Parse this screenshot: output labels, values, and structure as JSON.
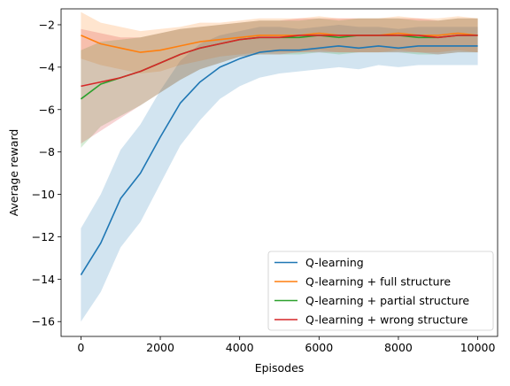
{
  "chart_data": {
    "type": "line",
    "title": "",
    "xlabel": "Episodes",
    "ylabel": "Average reward",
    "xlim": [
      -500,
      10500
    ],
    "ylim": [
      -16.7,
      -1.25
    ],
    "xticks": [
      0,
      2000,
      4000,
      6000,
      8000,
      10000
    ],
    "xtick_labels": [
      "0",
      "2000",
      "4000",
      "6000",
      "8000",
      "10000"
    ],
    "yticks": [
      -16,
      -14,
      -12,
      -10,
      -8,
      -6,
      -4,
      -2
    ],
    "ytick_labels": [
      "−16",
      "−14",
      "−12",
      "−10",
      "−8",
      "−6",
      "−4",
      "−2"
    ],
    "grid": false,
    "legend_position": "lower right",
    "x": [
      0,
      500,
      1000,
      1500,
      2000,
      2500,
      3000,
      3500,
      4000,
      4500,
      5000,
      5500,
      6000,
      6500,
      7000,
      7500,
      8000,
      8500,
      9000,
      9500,
      10000
    ],
    "series": [
      {
        "name": "Q-learning",
        "color": "#1f77b4",
        "values": [
          -13.8,
          -12.3,
          -10.2,
          -9.0,
          -7.3,
          -5.7,
          -4.7,
          -4.0,
          -3.6,
          -3.3,
          -3.2,
          -3.2,
          -3.1,
          -3.0,
          -3.1,
          -3.0,
          -3.1,
          -3.0,
          -3.0,
          -3.0,
          -3.0
        ],
        "band_width": [
          2.2,
          2.3,
          2.3,
          2.3,
          2.2,
          2.0,
          1.8,
          1.5,
          1.3,
          1.2,
          1.1,
          1.0,
          1.0,
          1.0,
          1.0,
          0.9,
          0.9,
          0.9,
          0.9,
          0.9,
          0.9
        ]
      },
      {
        "name": "Q-learning + full structure",
        "color": "#ff7f0e",
        "values": [
          -2.5,
          -2.9,
          -3.1,
          -3.3,
          -3.2,
          -3.0,
          -2.8,
          -2.7,
          -2.6,
          -2.5,
          -2.5,
          -2.5,
          -2.4,
          -2.5,
          -2.5,
          -2.5,
          -2.4,
          -2.5,
          -2.5,
          -2.4,
          -2.5
        ],
        "band_width": [
          1.1,
          1.0,
          1.0,
          1.0,
          1.0,
          0.9,
          0.9,
          0.8,
          0.8,
          0.8,
          0.8,
          0.8,
          0.8,
          0.8,
          0.8,
          0.8,
          0.8,
          0.8,
          0.8,
          0.8,
          0.8
        ]
      },
      {
        "name": "Q-learning + partial structure",
        "color": "#2ca02c",
        "values": [
          -5.5,
          -4.8,
          -4.5,
          -4.2,
          -3.8,
          -3.4,
          -3.1,
          -2.9,
          -2.7,
          -2.6,
          -2.6,
          -2.6,
          -2.5,
          -2.6,
          -2.5,
          -2.5,
          -2.5,
          -2.6,
          -2.6,
          -2.5,
          -2.5
        ],
        "band_width": [
          2.3,
          2.0,
          1.8,
          1.6,
          1.4,
          1.2,
          1.0,
          0.9,
          0.8,
          0.8,
          0.8,
          0.8,
          0.8,
          0.8,
          0.8,
          0.8,
          0.8,
          0.8,
          0.8,
          0.8,
          0.8
        ]
      },
      {
        "name": "Q-learning + wrong structure",
        "color": "#d62728",
        "values": [
          -4.9,
          -4.7,
          -4.5,
          -4.2,
          -3.8,
          -3.4,
          -3.1,
          -2.9,
          -2.7,
          -2.6,
          -2.6,
          -2.5,
          -2.5,
          -2.5,
          -2.5,
          -2.5,
          -2.5,
          -2.5,
          -2.6,
          -2.5,
          -2.5
        ],
        "band_width": [
          2.7,
          2.3,
          1.9,
          1.6,
          1.4,
          1.2,
          1.0,
          0.9,
          0.8,
          0.8,
          0.8,
          0.8,
          0.8,
          0.8,
          0.8,
          0.8,
          0.8,
          0.8,
          0.8,
          0.8,
          0.8
        ]
      }
    ]
  }
}
